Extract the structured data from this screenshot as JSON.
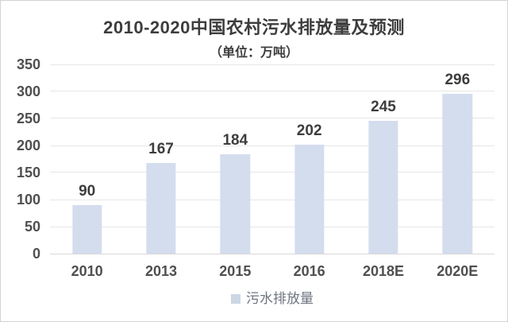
{
  "chart_data": {
    "type": "bar",
    "title": "2010-2020中国农村污水排放量及预测",
    "subtitle": "（单位：万吨）",
    "unit": "万吨",
    "categories": [
      "2010",
      "2013",
      "2015",
      "2016",
      "2018E",
      "2020E"
    ],
    "series": [
      {
        "name": "污水排放量",
        "values": [
          90,
          167,
          184,
          202,
          245,
          296
        ]
      }
    ],
    "ylim": [
      0,
      350
    ],
    "yticks": [
      350,
      300,
      250,
      200,
      150,
      100,
      50,
      0
    ],
    "grid": true,
    "legend_position": "bottom",
    "colors": {
      "bar_fill": "#d4ddee",
      "legend_swatch": "#ccd6e4",
      "gridline": "#e6e6e6",
      "baseline": "#d8d8d8",
      "title_text": "#3d3d3d",
      "axis_text": "#4f4f4f",
      "data_label_text": "#3d3d3d",
      "legend_text": "#6e7480"
    }
  }
}
